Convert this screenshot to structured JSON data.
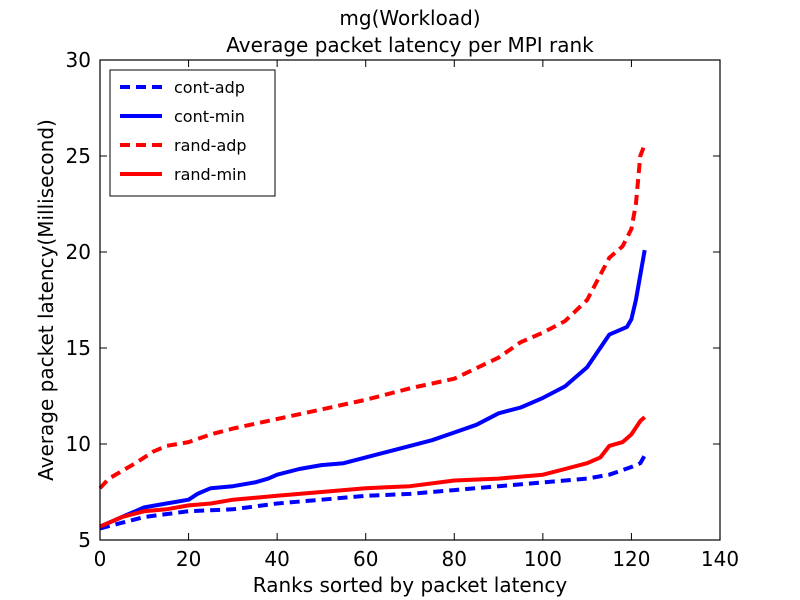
{
  "chart_data": {
    "type": "line",
    "title_lines": [
      "mg(Workload)",
      "Average packet latency per MPI rank"
    ],
    "xlabel": "Ranks sorted by packet latency",
    "ylabel": "Average packet latency(Millisecond)",
    "xlim": [
      0,
      140
    ],
    "ylim": [
      5,
      30
    ],
    "xticks": [
      0,
      20,
      40,
      60,
      80,
      100,
      120,
      140
    ],
    "yticks": [
      5,
      10,
      15,
      20,
      25,
      30
    ],
    "grid": false,
    "legend_position": "top-left",
    "series": [
      {
        "name": "cont-adp",
        "color": "#0000ff",
        "style": "dashed",
        "x": [
          0,
          5,
          10,
          20,
          30,
          40,
          50,
          60,
          70,
          80,
          90,
          100,
          110,
          115,
          120,
          122,
          123
        ],
        "y": [
          5.6,
          5.9,
          6.2,
          6.5,
          6.6,
          6.9,
          7.1,
          7.3,
          7.4,
          7.6,
          7.8,
          8.0,
          8.2,
          8.4,
          8.8,
          9.0,
          9.4
        ]
      },
      {
        "name": "cont-min",
        "color": "#0000ff",
        "style": "solid",
        "x": [
          0,
          3,
          6,
          10,
          15,
          20,
          22,
          25,
          30,
          35,
          38,
          40,
          45,
          50,
          55,
          60,
          65,
          70,
          75,
          80,
          85,
          90,
          95,
          100,
          105,
          110,
          115,
          119,
          120,
          121,
          122,
          123
        ],
        "y": [
          5.7,
          6.0,
          6.3,
          6.7,
          6.9,
          7.1,
          7.4,
          7.7,
          7.8,
          8.0,
          8.2,
          8.4,
          8.7,
          8.9,
          9.0,
          9.3,
          9.6,
          9.9,
          10.2,
          10.6,
          11.0,
          11.6,
          11.9,
          12.4,
          13.0,
          14.0,
          15.7,
          16.1,
          16.5,
          17.5,
          18.8,
          20.1
        ]
      },
      {
        "name": "rand-adp",
        "color": "#ff0000",
        "style": "dashed",
        "x": [
          0,
          2,
          5,
          8,
          10,
          12,
          15,
          20,
          25,
          30,
          40,
          50,
          60,
          70,
          80,
          90,
          95,
          100,
          105,
          110,
          115,
          118,
          120,
          121,
          122,
          123
        ],
        "y": [
          7.7,
          8.2,
          8.6,
          9.0,
          9.3,
          9.6,
          9.9,
          10.1,
          10.5,
          10.8,
          11.3,
          11.8,
          12.3,
          12.9,
          13.4,
          14.5,
          15.3,
          15.8,
          16.4,
          17.5,
          19.7,
          20.3,
          21.2,
          22.5,
          25.0,
          25.6
        ]
      },
      {
        "name": "rand-min",
        "color": "#ff0000",
        "style": "solid",
        "x": [
          0,
          5,
          10,
          15,
          20,
          25,
          30,
          40,
          50,
          60,
          70,
          80,
          90,
          100,
          105,
          110,
          113,
          115,
          118,
          120,
          122,
          123
        ],
        "y": [
          5.7,
          6.2,
          6.5,
          6.6,
          6.8,
          6.9,
          7.1,
          7.3,
          7.5,
          7.7,
          7.8,
          8.1,
          8.2,
          8.4,
          8.7,
          9.0,
          9.3,
          9.9,
          10.1,
          10.5,
          11.2,
          11.4
        ]
      }
    ]
  }
}
